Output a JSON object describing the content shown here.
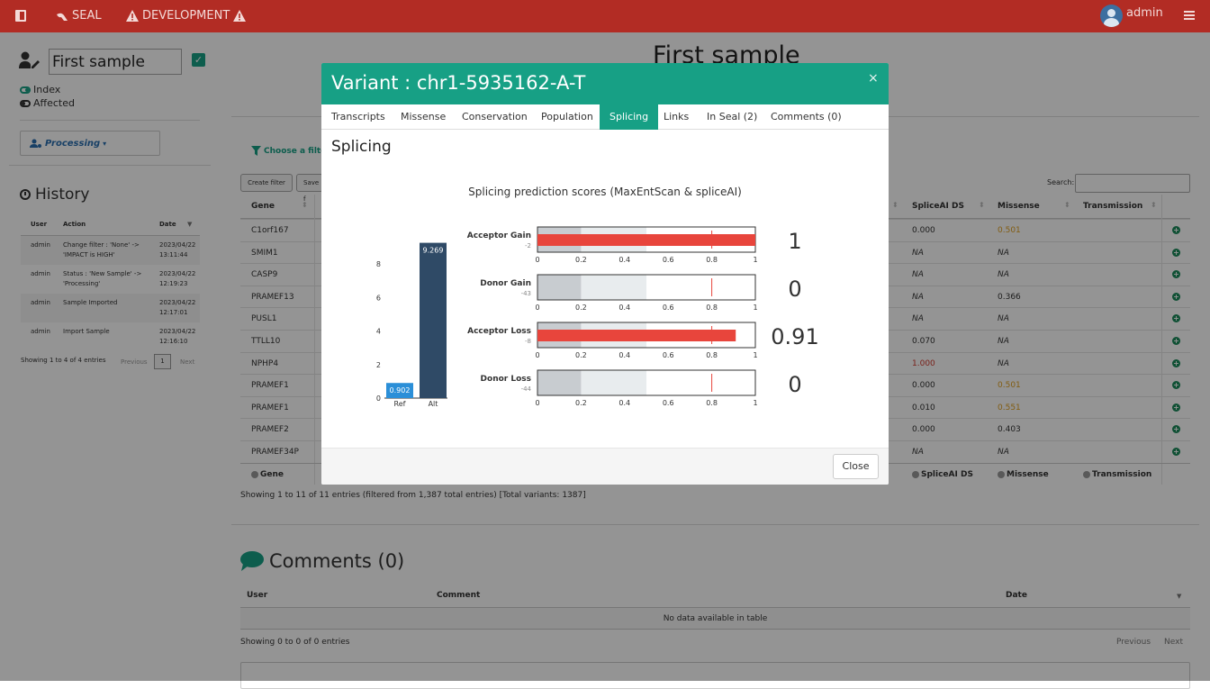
{
  "topbar": {
    "brand": "SEAL",
    "env": "DEVELOPMENT",
    "user": "admin"
  },
  "sidebar": {
    "sample_name": "First sample",
    "legend_index": "Index",
    "legend_affected": "Affected",
    "status_dropdown": "Processing",
    "history_title": "History",
    "history_headers": {
      "user": "User",
      "action": "Action",
      "date": "Date"
    },
    "history_rows": [
      {
        "user": "admin",
        "action1": "Change filter : 'None' ->",
        "action2": "'IMPACT is HIGH'",
        "date1": "2023/04/22",
        "date2": "13:11:44"
      },
      {
        "user": "admin",
        "action1": "Status : 'New Sample' ->",
        "action2": "'Processing'",
        "date1": "2023/04/22",
        "date2": "12:19:23"
      },
      {
        "user": "admin",
        "action1": "Sample Imported",
        "action2": "",
        "date1": "2023/04/22",
        "date2": "12:17:01"
      },
      {
        "user": "admin",
        "action1": "Import Sample",
        "action2": "",
        "date1": "2023/04/22",
        "date2": "12:16:10"
      }
    ],
    "history_info": "Showing 1 to 4 of 4 entries",
    "history_prev": "Previous",
    "history_page": "1",
    "history_next": "Next"
  },
  "main": {
    "title": "First sample",
    "filter_label": "Choose a filter",
    "create_filter": "Create filter",
    "save_filter": "Save f",
    "search_label": "Search:",
    "search_value": "",
    "col_gene": "Gene",
    "col_splice": "SpliceAI DS",
    "col_missense": "Missense",
    "col_transmission": "Transmission",
    "rows": [
      {
        "gene": "C1orf167",
        "splice": "0.000",
        "missense": "0.501"
      },
      {
        "gene": "SMIM1",
        "splice": "NA",
        "missense": "NA"
      },
      {
        "gene": "CASP9",
        "splice": "NA",
        "missense": "NA"
      },
      {
        "gene": "PRAMEF13",
        "splice": "NA",
        "missense": "0.366"
      },
      {
        "gene": "PUSL1",
        "splice": "NA",
        "missense": "NA"
      },
      {
        "gene": "TTLL10",
        "splice": "0.070",
        "missense": "NA"
      },
      {
        "gene": "NPHP4",
        "splice": "1.000",
        "missense": "NA"
      },
      {
        "gene": "PRAMEF1",
        "splice": "0.000",
        "missense": "0.501"
      },
      {
        "gene": "PRAMEF1",
        "splice": "0.010",
        "missense": "0.551"
      },
      {
        "gene": "PRAMEF2",
        "splice": "0.000",
        "missense": "0.403"
      },
      {
        "gene": "PRAMEF34P",
        "splice": "NA",
        "missense": "NA"
      }
    ],
    "table_info": "Showing 1 to 11 of 11 entries (filtered from 1,387 total entries) [Total variants: 1387]",
    "comments_title": "Comments (0)",
    "comments_headers": {
      "user": "User",
      "comment": "Comment",
      "date": "Date"
    },
    "comments_empty": "No data available in table",
    "comments_info": "Showing 0 to 0 of 0 entries",
    "comments_prev": "Previous",
    "comments_next": "Next"
  },
  "modal": {
    "title": "Variant : chr1-5935162-A-T",
    "close_x": "×",
    "tabs": [
      "Transcripts",
      "Missense",
      "Conservation",
      "Population",
      "Splicing",
      "Links",
      "In Seal (2)",
      "Comments (0)"
    ],
    "active_tab": "Splicing",
    "section_title": "Splicing",
    "chart_title": "Splicing prediction scores (MaxEntScan & spliceAI)",
    "close_button": "Close"
  },
  "chart_data": [
    {
      "type": "bar",
      "categories": [
        "Ref",
        "Alt"
      ],
      "values": [
        0.902,
        9.269
      ],
      "ylim": [
        0,
        10
      ],
      "yticks": [
        0,
        2,
        4,
        6,
        8
      ],
      "colors": [
        "#2b8fd8",
        "#2f4a66"
      ]
    },
    {
      "type": "bar",
      "orientation": "horizontal",
      "xlim": [
        0,
        1
      ],
      "xticks": [
        "0",
        "0.2",
        "0.4",
        "0.6",
        "0.8",
        "1"
      ],
      "bars": [
        {
          "label": "Acceptor Gain",
          "sublabel": "-2",
          "value": 1,
          "display": "1"
        },
        {
          "label": "Donor Gain",
          "sublabel": "-43",
          "value": 0,
          "display": "0"
        },
        {
          "label": "Acceptor Loss",
          "sublabel": "-8",
          "value": 0.91,
          "display": "0.91"
        },
        {
          "label": "Donor Loss",
          "sublabel": "-44",
          "value": 0,
          "display": "0"
        }
      ],
      "bar_color": "#e8453c"
    }
  ],
  "colors": {
    "topbar": "#b22c24",
    "teal": "#17a085",
    "orange": "#e0a020",
    "red": "#d23a2e",
    "green": "#1a8a5a"
  }
}
